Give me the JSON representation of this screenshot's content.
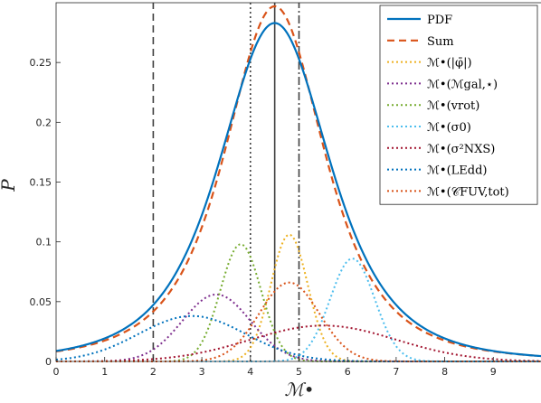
{
  "chart_data": {
    "type": "line",
    "xlabel": "ℳ•",
    "ylabel": "P",
    "xlim": [
      0,
      10
    ],
    "ylim": [
      0,
      0.3
    ],
    "x_ticks": [
      0,
      1,
      2,
      3,
      4,
      5,
      6,
      7,
      8,
      9
    ],
    "x_tick_labels": [
      "0",
      "1",
      "2",
      "3",
      "4",
      "5",
      "6",
      "7",
      "8",
      "9"
    ],
    "y_ticks": [
      0,
      0.05,
      0.1,
      0.15,
      0.2,
      0.25
    ],
    "y_tick_labels": [
      "0",
      "0.05",
      "0.1",
      "0.15",
      "0.2",
      "0.25"
    ],
    "grid": false,
    "legend_position": "top-right",
    "series": [
      {
        "name": "PDF",
        "style": "solid",
        "color": "#0072BD",
        "shape": "student_t",
        "center": 4.5,
        "peak": 0.283,
        "scale": 1.2,
        "nu": 3
      },
      {
        "name": "Sum",
        "style": "dashed",
        "color": "#D95319",
        "shape": "student_t",
        "center": 4.5,
        "peak": 0.297,
        "scale": 1.1,
        "nu": 2.5
      },
      {
        "name": "ℳ•(|φ̄|)",
        "style": "dotted",
        "color": "#EDB120",
        "shape": "gaussian",
        "center": 4.8,
        "peak": 0.106,
        "sigma": 0.38
      },
      {
        "name": "ℳ•(ℳgal,⋆)",
        "style": "dotted",
        "color": "#7E2F8E",
        "shape": "gaussian",
        "center": 3.3,
        "peak": 0.056,
        "sigma": 0.7
      },
      {
        "name": "ℳ•(vrot)",
        "style": "dotted",
        "color": "#77AC30",
        "shape": "gaussian",
        "center": 3.8,
        "peak": 0.098,
        "sigma": 0.42
      },
      {
        "name": "ℳ•(σ0)",
        "style": "dotted",
        "color": "#4DBEEE",
        "shape": "gaussian",
        "center": 6.1,
        "peak": 0.086,
        "sigma": 0.46
      },
      {
        "name": "ℳ•(σ²NXS)",
        "style": "dotted",
        "color": "#A2142F",
        "shape": "gaussian",
        "center": 5.5,
        "peak": 0.03,
        "sigma": 1.5
      },
      {
        "name": "ℳ•(LEdd)",
        "style": "dotted",
        "color": "#0072BD",
        "shape": "gaussian",
        "center": 2.8,
        "peak": 0.038,
        "sigma": 1.1
      },
      {
        "name": "ℳ•(𝒞FUV,tot)",
        "style": "dotted",
        "color": "#D95319",
        "shape": "gaussian",
        "center": 4.8,
        "peak": 0.066,
        "sigma": 0.62
      }
    ],
    "vertical_lines": [
      {
        "x": 2,
        "style": "dashed",
        "color": "#404040"
      },
      {
        "x": 4,
        "style": "dotted",
        "color": "#404040"
      },
      {
        "x": 4.5,
        "style": "solid",
        "color": "#404040"
      },
      {
        "x": 5,
        "style": "dashdot",
        "color": "#404040"
      }
    ]
  }
}
